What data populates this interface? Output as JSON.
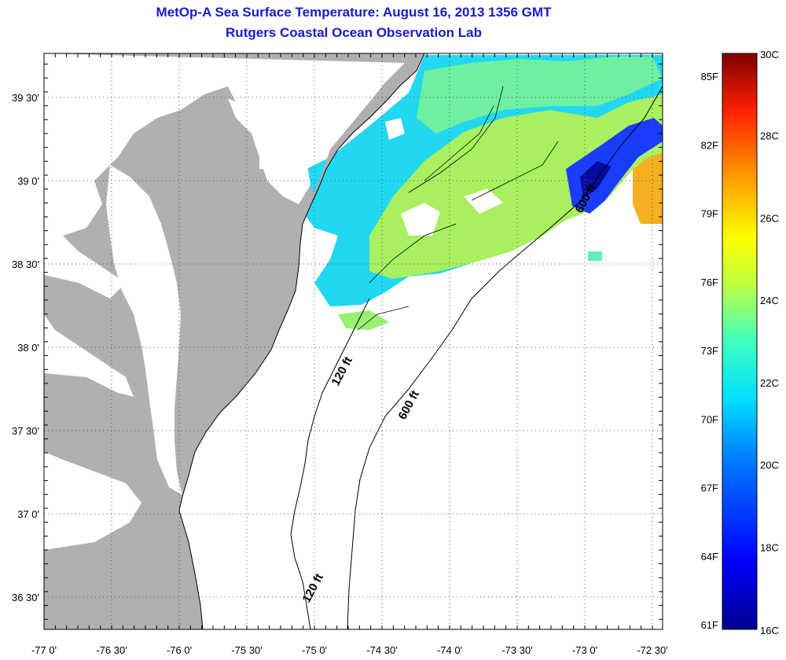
{
  "title": "MetOp-A Sea Surface Temperature:  August 16, 2013 1356 GMT",
  "subtitle": "Rutgers Coastal Ocean Observation Lab",
  "colors": {
    "land": "#b0b0b0",
    "no_data": "#ffffff",
    "title": "#1a1acc",
    "grid": "#555555",
    "coast": "#000000"
  },
  "chart_data": {
    "type": "heatmap",
    "map_extent": {
      "lon": [
        -77.0,
        -72.3
      ],
      "lat": [
        36.2,
        39.8
      ]
    },
    "x_ticks": [
      {
        "value": -77.0,
        "label": "-77 0'"
      },
      {
        "value": -76.5,
        "label": "-76 30'"
      },
      {
        "value": -76.0,
        "label": "-76 0'"
      },
      {
        "value": -75.5,
        "label": "-75 30'"
      },
      {
        "value": -75.0,
        "label": "-75 0'"
      },
      {
        "value": -74.5,
        "label": "-74 30'"
      },
      {
        "value": -74.0,
        "label": "-74 0'"
      },
      {
        "value": -73.5,
        "label": "-73 30'"
      },
      {
        "value": -73.0,
        "label": "-73 0'"
      },
      {
        "value": -72.5,
        "label": "-72 30'"
      }
    ],
    "y_ticks": [
      {
        "value": 39.5,
        "label": "39 30'"
      },
      {
        "value": 39.0,
        "label": "39 0'"
      },
      {
        "value": 38.5,
        "label": "38 30'"
      },
      {
        "value": 38.0,
        "label": "38 0'"
      },
      {
        "value": 37.5,
        "label": "37 30'"
      },
      {
        "value": 37.0,
        "label": "37 0'"
      },
      {
        "value": 36.5,
        "label": "36 30'"
      }
    ],
    "grid": true,
    "colorbar": {
      "range_c": [
        16,
        30
      ],
      "celsius_labels": [
        {
          "value": 30,
          "label": "30C"
        },
        {
          "value": 28,
          "label": "28C"
        },
        {
          "value": 26,
          "label": "26C"
        },
        {
          "value": 24,
          "label": "24C"
        },
        {
          "value": 22,
          "label": "22C"
        },
        {
          "value": 20,
          "label": "20C"
        },
        {
          "value": 18,
          "label": "18C"
        },
        {
          "value": 16,
          "label": "16C"
        }
      ],
      "fahrenheit_labels": [
        {
          "value": 85,
          "label": "85F"
        },
        {
          "value": 82,
          "label": "82F"
        },
        {
          "value": 79,
          "label": "79F"
        },
        {
          "value": 76,
          "label": "76F"
        },
        {
          "value": 73,
          "label": "73F"
        },
        {
          "value": 70,
          "label": "70F"
        },
        {
          "value": 67,
          "label": "67F"
        },
        {
          "value": 64,
          "label": "64F"
        },
        {
          "value": 61,
          "label": "61F"
        }
      ]
    },
    "contour_labels": [
      "120 ft",
      "600 ft",
      "600 ft",
      "120 ft"
    ]
  }
}
